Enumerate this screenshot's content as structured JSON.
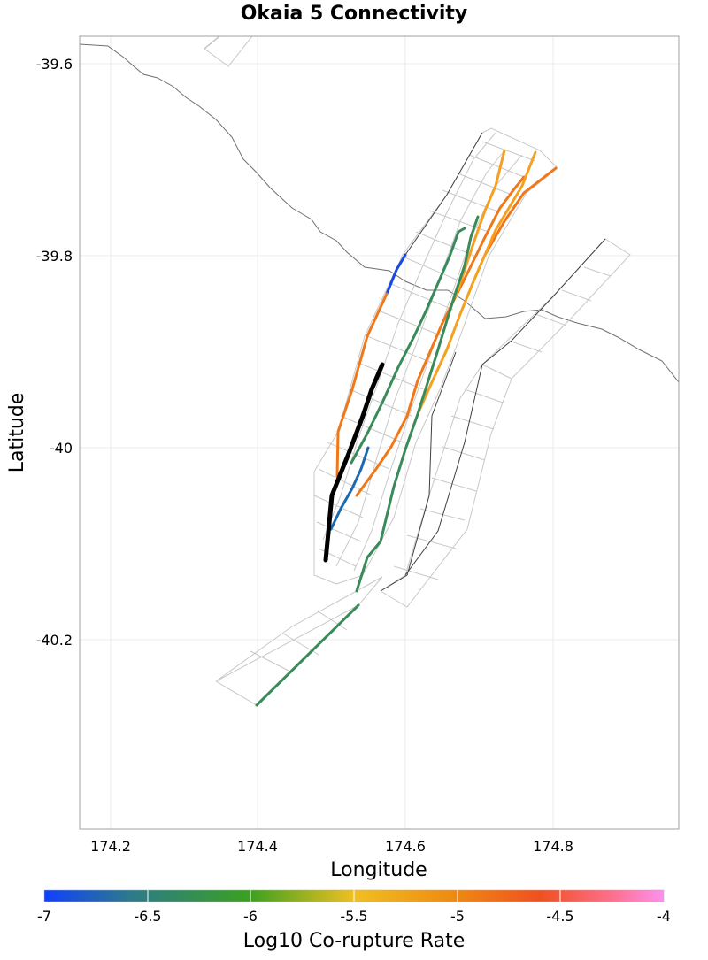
{
  "title": "Okaia 5 Connectivity",
  "x_axis": {
    "label": "Longitude",
    "ticks": [
      "174.2",
      "174.4",
      "174.6",
      "174.8"
    ]
  },
  "y_axis": {
    "label": "Latitude",
    "ticks": [
      "-39.6",
      "-39.8",
      "-40",
      "-40.2"
    ]
  },
  "colorbar": {
    "label": "Log10 Co-rupture Rate",
    "ticks": [
      "-7",
      "-6.5",
      "-6",
      "-5.5",
      "-5",
      "-4.5",
      "-4"
    ],
    "stops": [
      "#1040ff",
      "#2e7a8a",
      "#3aa020",
      "#f0c020",
      "#f08a10",
      "#f05020",
      "#ff7090",
      "#ff90f0"
    ]
  },
  "colors": {
    "grid": "#ebebeb",
    "panel_border": "#a0a0a0",
    "coastline": "#707070",
    "fault_outline": "#c8c8c8",
    "fault_trace": "#404040",
    "target_fault": "#000000",
    "green_connection": "#3a8a5a",
    "orange_connection": "#f07818",
    "light_orange_connection": "#f5a020",
    "blue_connection": "#1a6ab0",
    "bright_blue_connection": "#1848e0"
  }
}
